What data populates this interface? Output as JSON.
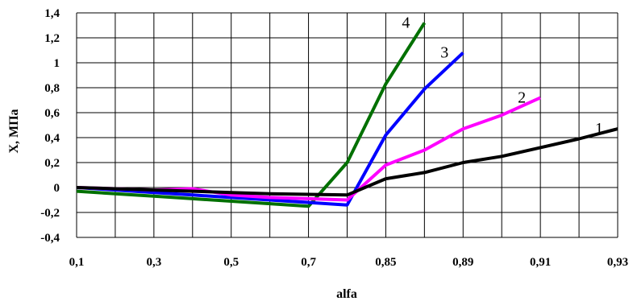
{
  "chart_data": {
    "type": "line",
    "xlabel": "alfa",
    "ylabel": "X, МПа",
    "categories": [
      "0,1",
      "",
      "0,3",
      "",
      "0,5",
      "",
      "0,7",
      "",
      "0,85",
      "",
      "0,89",
      "",
      "0,91",
      "",
      "0,93"
    ],
    "x_tick_labels": [
      "0,1",
      "0,3",
      "0,5",
      "0,7",
      "0,85",
      "0,89",
      "0,91",
      "0,93"
    ],
    "y_tick_labels": [
      "-0,4",
      "-0,2",
      "0",
      "0,2",
      "0,4",
      "0,6",
      "0,8",
      "1",
      "1,2",
      "1,4"
    ],
    "ylim": [
      -0.4,
      1.4
    ],
    "grid": true,
    "legend": "none",
    "series": [
      {
        "label": "1",
        "color": "#000000",
        "values": [
          0.0,
          -0.01,
          -0.02,
          -0.03,
          -0.04,
          -0.05,
          -0.055,
          -0.06,
          0.07,
          0.12,
          0.2,
          0.25,
          0.32,
          0.39,
          0.47
        ]
      },
      {
        "label": "2",
        "color": "#ff00ff",
        "values": [
          0.0,
          -0.01,
          -0.02,
          -0.01,
          -0.06,
          -0.08,
          -0.09,
          -0.1,
          0.18,
          0.3,
          0.47,
          0.58,
          0.72,
          null,
          null
        ]
      },
      {
        "label": "3",
        "color": "#0000ff",
        "values": [
          0.0,
          -0.02,
          -0.04,
          -0.06,
          -0.08,
          -0.1,
          -0.12,
          -0.14,
          0.42,
          0.79,
          1.08,
          null,
          null,
          null,
          null
        ]
      },
      {
        "label": "4",
        "color": "#007000",
        "values": [
          -0.03,
          -0.05,
          -0.07,
          -0.09,
          -0.11,
          -0.13,
          -0.15,
          0.2,
          0.83,
          1.32,
          null,
          null,
          null,
          null,
          null
        ]
      }
    ]
  }
}
